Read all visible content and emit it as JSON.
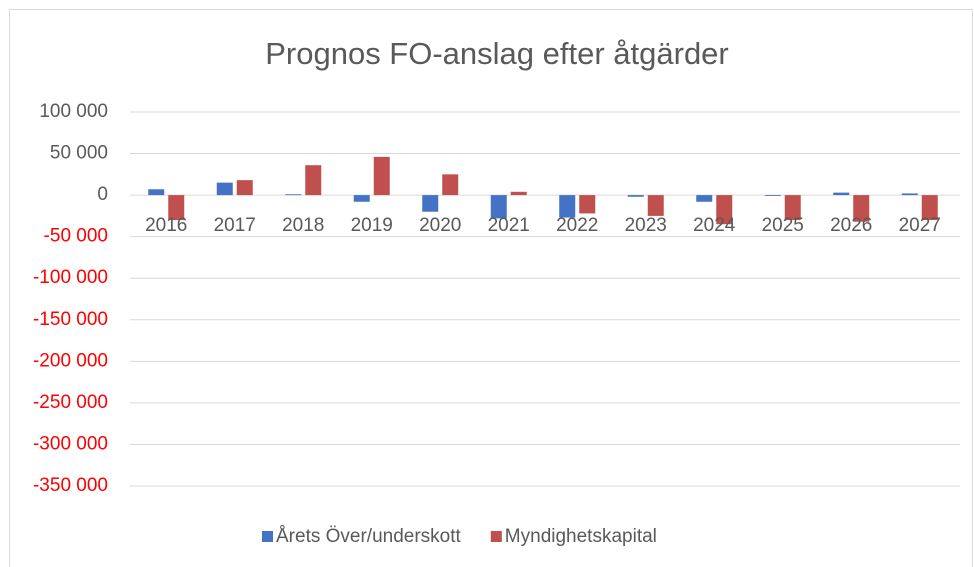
{
  "chart_data": {
    "type": "bar",
    "title": "Prognos FO-anslag efter åtgärder",
    "categories": [
      "2016",
      "2017",
      "2018",
      "2019",
      "2020",
      "2021",
      "2022",
      "2023",
      "2024",
      "2025",
      "2026",
      "2027"
    ],
    "series": [
      {
        "name": "Årets Över/underskott",
        "color": "#4472c4",
        "values": [
          7000,
          15000,
          1000,
          -8000,
          -20000,
          -28000,
          -27000,
          -2000,
          -8000,
          -1000,
          3000,
          2000
        ]
      },
      {
        "name": "Myndighetskapital",
        "color": "#c0504d",
        "values": [
          -30000,
          18000,
          36000,
          46000,
          25000,
          4000,
          -22000,
          -25000,
          -35000,
          -30000,
          -32000,
          -30000
        ]
      }
    ],
    "ylim": [
      -350000,
      100000
    ],
    "yticks": [
      {
        "value": -350000,
        "label": "-350 000"
      },
      {
        "value": -300000,
        "label": "-300 000"
      },
      {
        "value": -250000,
        "label": "-250 000"
      },
      {
        "value": -200000,
        "label": "-200 000"
      },
      {
        "value": -150000,
        "label": "-150 000"
      },
      {
        "value": -100000,
        "label": "-100 000"
      },
      {
        "value": -50000,
        "label": "-50 000"
      },
      0,
      {
        "value": 50000,
        "label": "50 000"
      },
      {
        "value": 100000,
        "label": "100 000"
      }
    ],
    "negative_tick_color": "#ff0000",
    "grid": true,
    "legend": "bottom"
  }
}
